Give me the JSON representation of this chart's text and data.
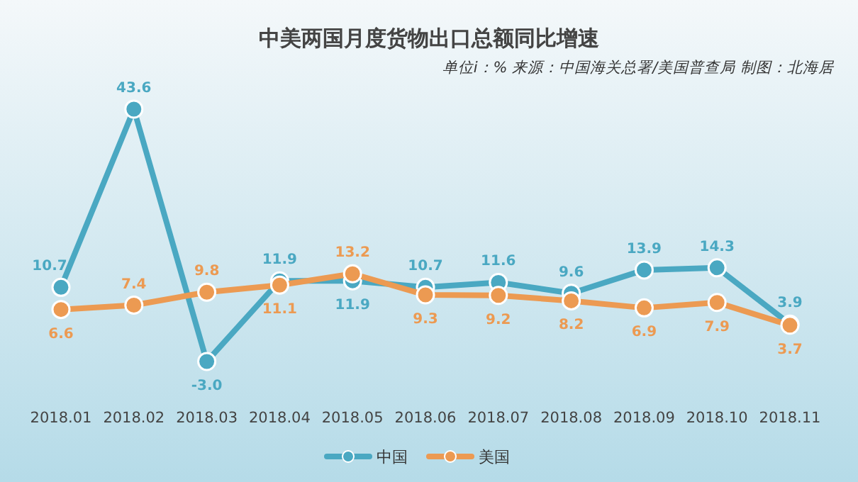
{
  "chart_data": {
    "type": "line",
    "title": "中美两国月度货物出口总额同比增速",
    "subtitle": "单位i：% 来源：中国海关总署/美国普查局 制图：北海居",
    "categories": [
      "2018.01",
      "2018.02",
      "2018.03",
      "2018.04",
      "2018.05",
      "2018.06",
      "2018.07",
      "2018.08",
      "2018.09",
      "2018.10",
      "2018.11"
    ],
    "series": [
      {
        "name": "中国",
        "color": "#4aa8c2",
        "values": [
          10.7,
          43.6,
          -3.0,
          11.9,
          11.9,
          10.7,
          11.6,
          9.6,
          13.9,
          14.3,
          3.9
        ],
        "value_labels": [
          "10.7",
          "43.6",
          "-3.0",
          "11.9",
          "11.9",
          "10.7",
          "11.6",
          "9.6",
          "13.9",
          "14.3",
          "3.9"
        ]
      },
      {
        "name": "美国",
        "color": "#ec9a52",
        "values": [
          6.6,
          7.4,
          9.8,
          11.1,
          13.2,
          9.3,
          9.2,
          8.2,
          6.9,
          7.9,
          3.7
        ],
        "value_labels": [
          "6.6",
          "7.4",
          "9.8",
          "11.1",
          "13.2",
          "9.3",
          "9.2",
          "8.2",
          "6.9",
          "7.9",
          "3.7"
        ]
      }
    ],
    "legend": "bottom",
    "marker": "circle",
    "line_style": "solid"
  }
}
